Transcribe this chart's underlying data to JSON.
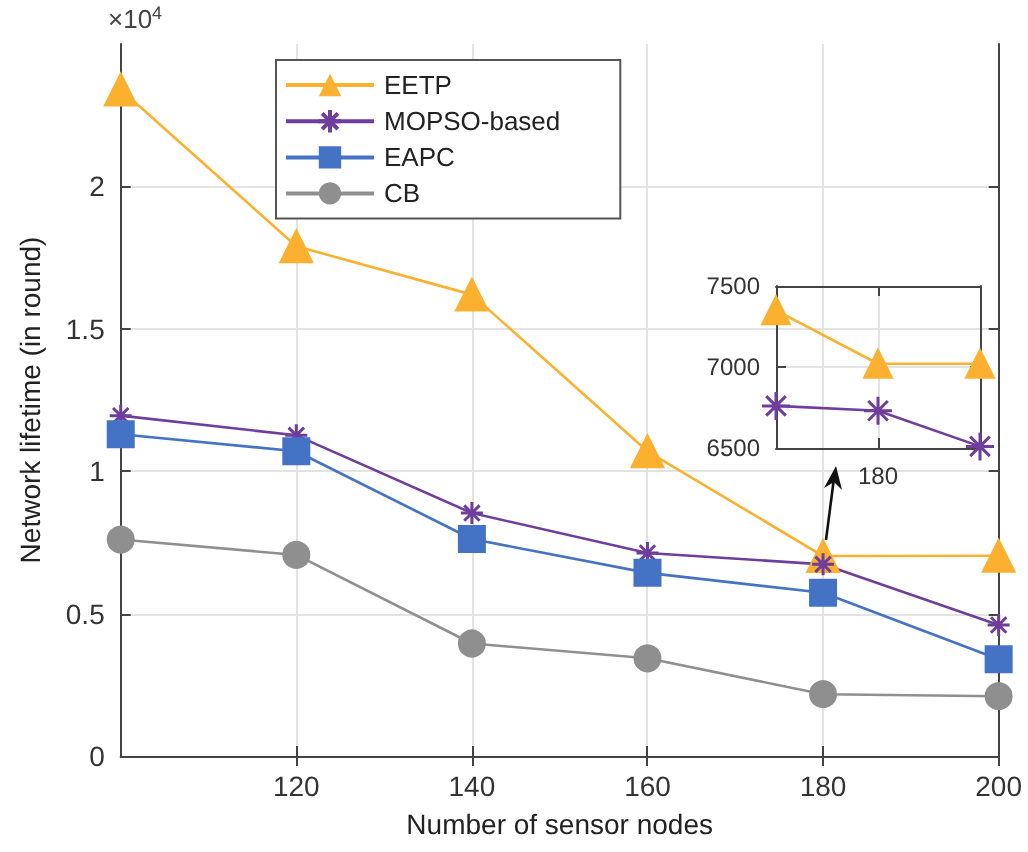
{
  "chart_data": [
    {
      "type": "line",
      "xlabel": "Number of sensor nodes",
      "ylabel": "Network lifetime (in round)",
      "annotations": [
        "×10$^{4}$"
      ],
      "x": [
        100,
        120,
        140,
        160,
        180,
        200
      ],
      "series": [
        {
          "name": "EETP",
          "color": "#fbb12f",
          "marker": "triangle",
          "values": [
            2.34,
            1.79,
            1.62,
            1.07,
            0.702,
            0.703
          ]
        },
        {
          "name": "MOPSO-based",
          "color": "#6f3d9c",
          "marker": "cross",
          "values": [
            1.195,
            1.126,
            0.853,
            0.713,
            0.673,
            0.46
          ]
        },
        {
          "name": "EAPC",
          "color": "#4472c4",
          "marker": "square",
          "values": [
            1.13,
            1.07,
            0.762,
            0.643,
            0.573,
            0.34
          ]
        },
        {
          "name": "CB",
          "color": "#8f8f8f",
          "marker": "circle",
          "values": [
            0.76,
            0.706,
            0.395,
            0.343,
            0.217,
            0.21
          ]
        }
      ],
      "xlim": [
        100,
        200
      ],
      "xticks": [
        120,
        140,
        160,
        180,
        200
      ],
      "ylim": [
        0,
        2.5
      ],
      "yticks": [
        0,
        0.5,
        1,
        1.5,
        2
      ],
      "grid": true,
      "legend": "top left"
    },
    {
      "type": "line",
      "categories": [
        null,
        "180",
        null
      ],
      "series": [
        {
          "color": "#fbb12f",
          "marker": "triangle",
          "values": [
            7350,
            7020,
            7020
          ]
        },
        {
          "color": "#6f3d9c",
          "marker": "cross",
          "values": [
            6760,
            6730,
            6510
          ]
        }
      ],
      "ylim": [
        6500,
        7500
      ],
      "yticks": [
        6500,
        7000,
        7500
      ],
      "grid": true
    }
  ]
}
